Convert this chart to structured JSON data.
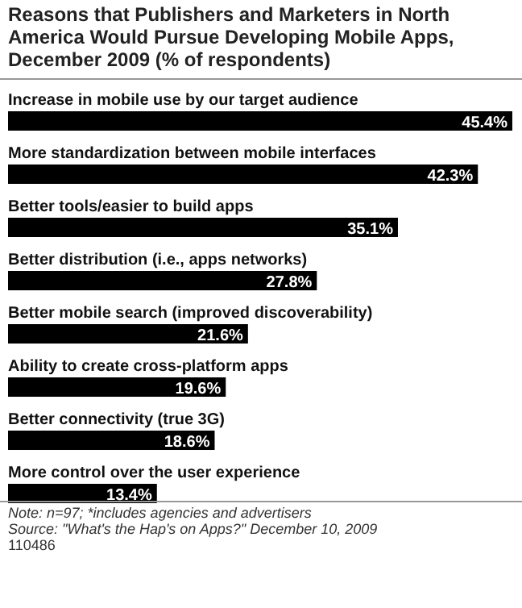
{
  "chart_data": {
    "type": "bar",
    "orientation": "horizontal",
    "title": "Reasons that Publishers and Marketers in North America Would Pursue Developing Mobile Apps, December 2009 (% of respondents)",
    "categories": [
      "Increase in mobile use by our target audience",
      "More standardization between mobile interfaces",
      "Better tools/easier to build apps",
      "Better distribution (i.e., apps networks)",
      "Better mobile search (improved discoverability)",
      "Ability to create cross-platform apps",
      "Better connectivity (true 3G)",
      "More control over the user experience"
    ],
    "values": [
      45.4,
      42.3,
      35.1,
      27.8,
      21.6,
      19.6,
      18.6,
      13.4
    ],
    "value_labels": [
      "45.4%",
      "42.3%",
      "35.1%",
      "27.8%",
      "21.6%",
      "19.6%",
      "18.6%",
      "13.4%"
    ],
    "color": "#000000",
    "xlim": [
      0,
      45.4
    ],
    "annotations": [
      "Note: n=97; *includes agencies and advertisers",
      "Source: \"What's the Hap's on Apps?\" December 10, 2009",
      "110486"
    ]
  }
}
